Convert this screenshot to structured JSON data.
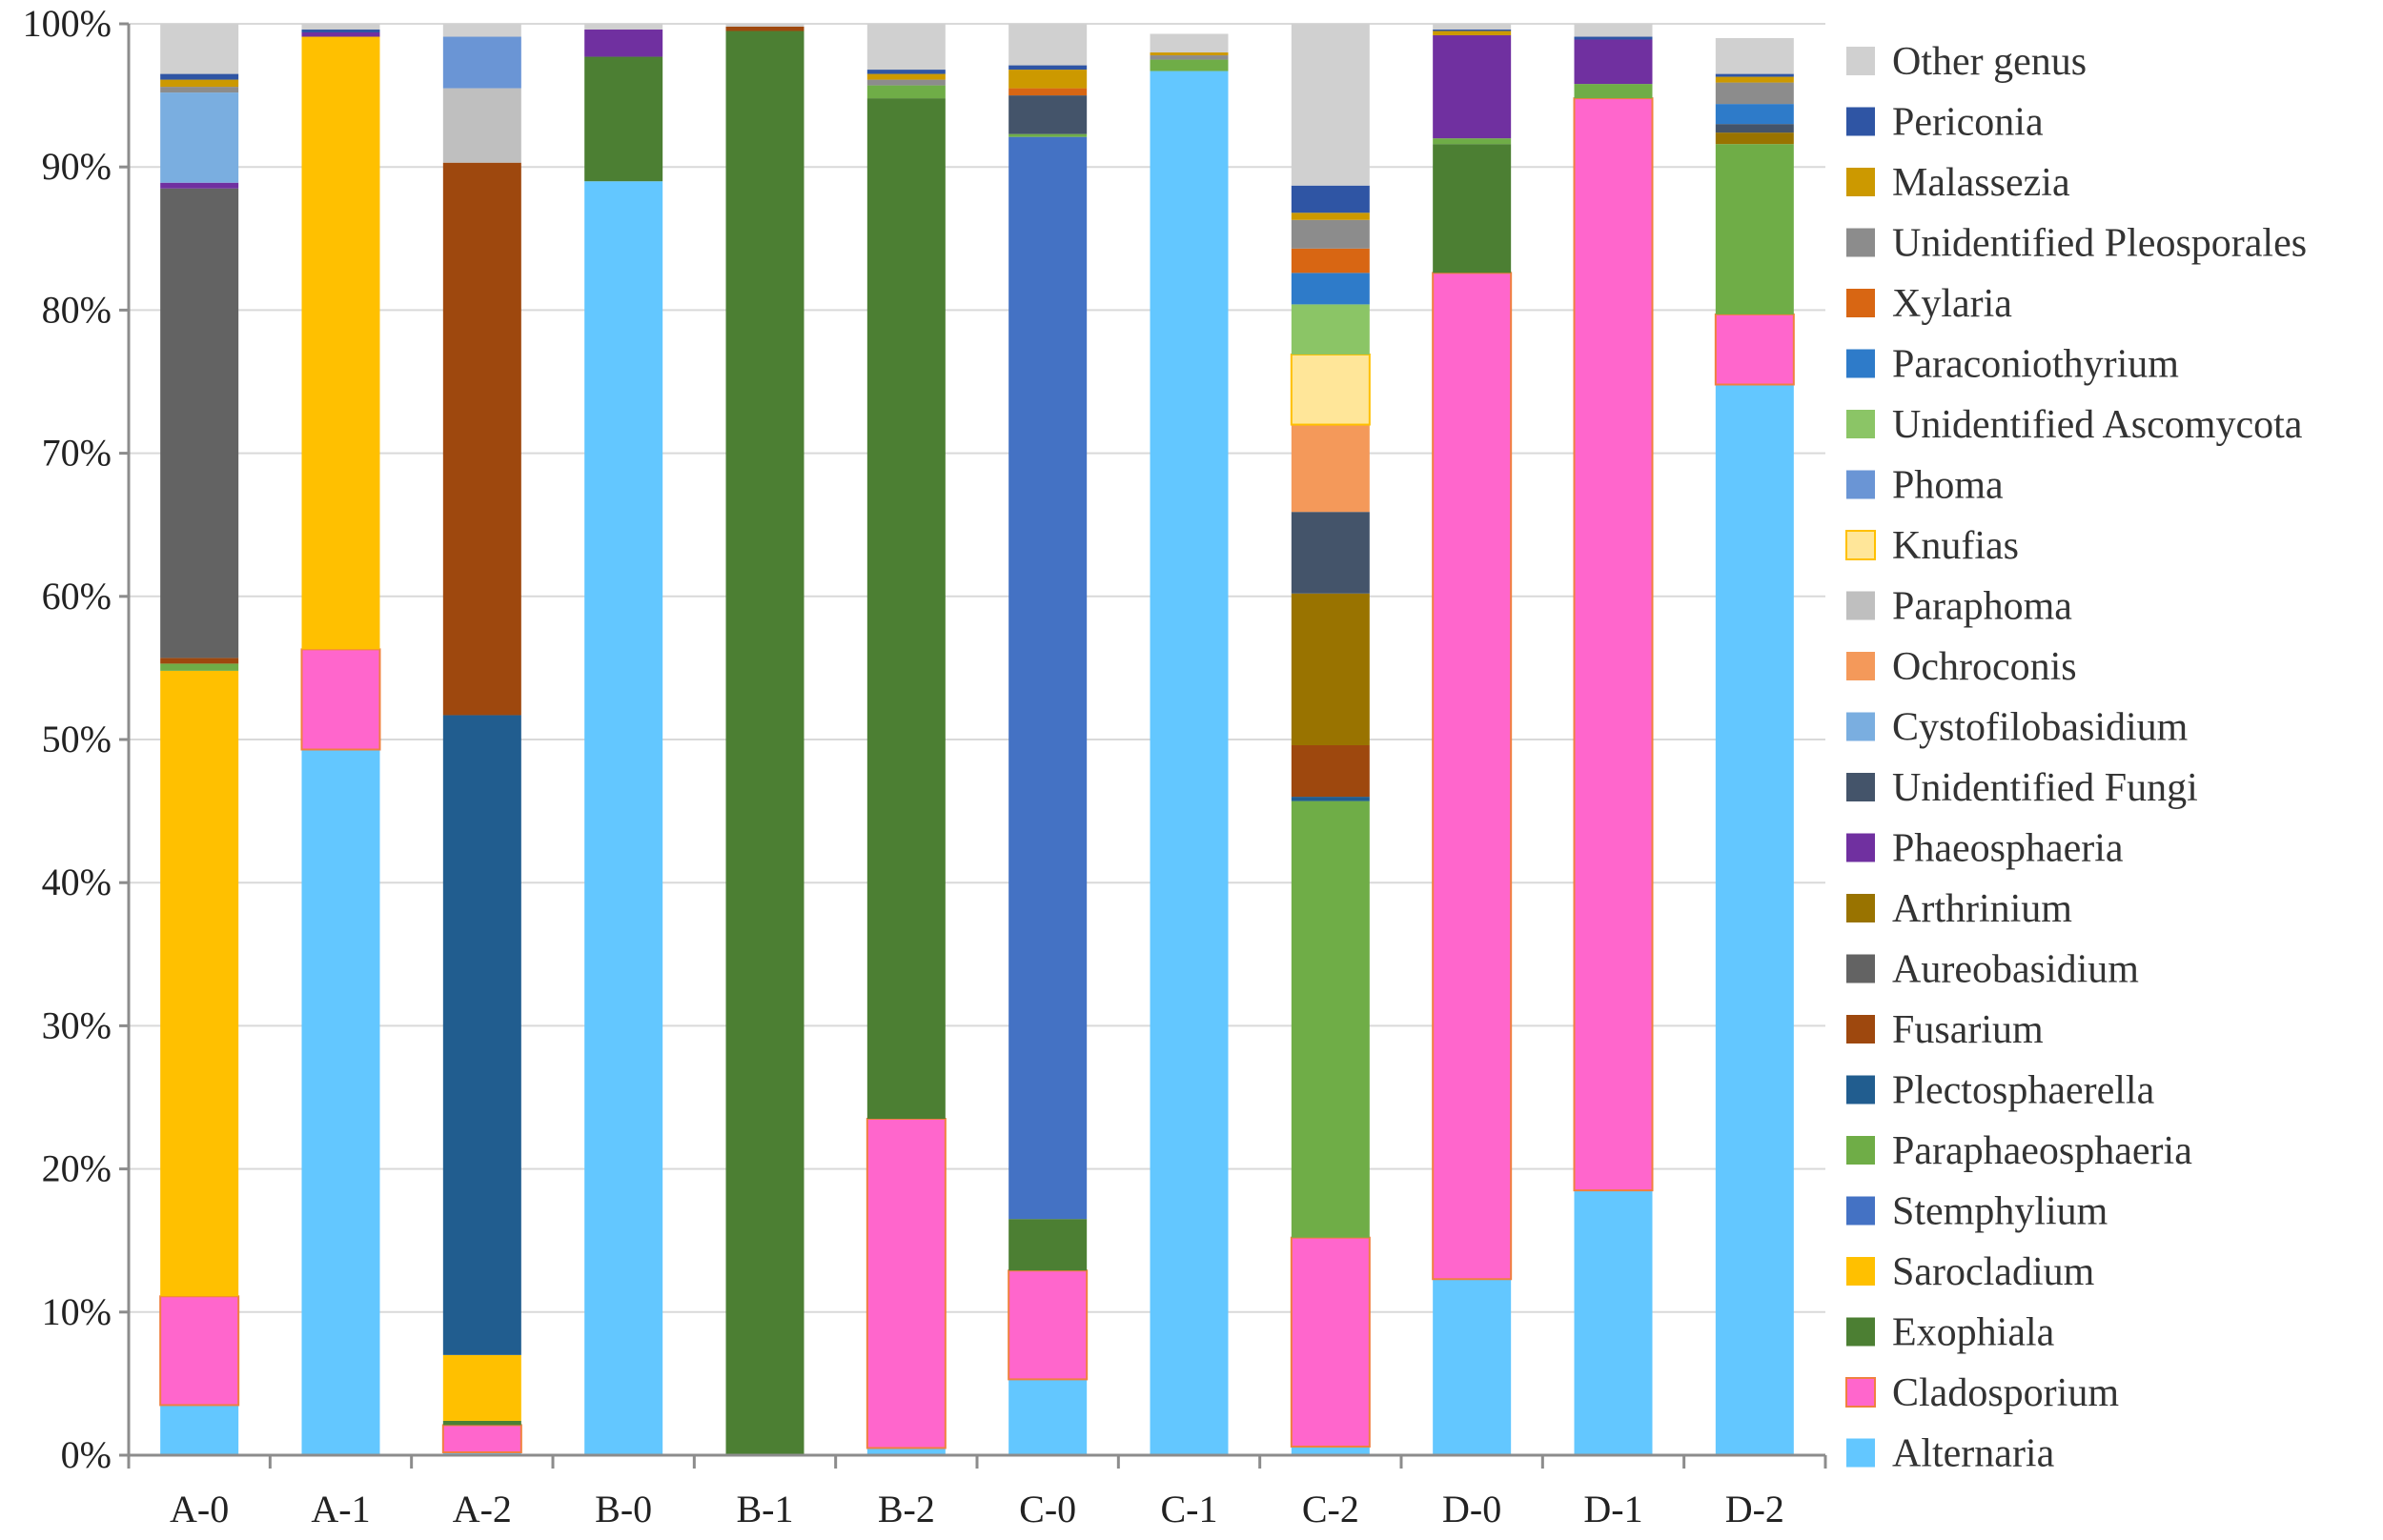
{
  "chart_data": {
    "type": "bar",
    "stacked": true,
    "percent": true,
    "title": "",
    "xlabel": "",
    "ylabel": "",
    "ylim": [
      0,
      100
    ],
    "yticks": [
      "0%",
      "10%",
      "20%",
      "30%",
      "40%",
      "50%",
      "60%",
      "70%",
      "80%",
      "90%",
      "100%"
    ],
    "grid": true,
    "legend_position": "right",
    "categories": [
      "A-0",
      "A-1",
      "A-2",
      "B-0",
      "B-1",
      "B-2",
      "C-0",
      "C-1",
      "C-2",
      "D-0",
      "D-1",
      "D-2"
    ],
    "series": [
      {
        "name": "Alternaria",
        "color": "#63C7FF",
        "values": [
          3.5,
          49.3,
          0.2,
          89.0,
          0,
          0.5,
          5.3,
          96.7,
          0.6,
          12.3,
          18.5,
          74.8
        ]
      },
      {
        "name": "Cladosporium",
        "color": "#FF66CC",
        "values": [
          7.6,
          7.0,
          1.9,
          0,
          0,
          23.0,
          7.6,
          0,
          14.6,
          70.3,
          76.3,
          4.9
        ]
      },
      {
        "name": "Exophiala",
        "color": "#4C7F33",
        "values": [
          0,
          0,
          0.3,
          8.7,
          99.5,
          71.3,
          3.6,
          0,
          0,
          9.0,
          0,
          0
        ]
      },
      {
        "name": "Sarocladium",
        "color": "#FFC000",
        "values": [
          43.7,
          42.8,
          4.6,
          0,
          0,
          0,
          0,
          0,
          0,
          0,
          0,
          0
        ]
      },
      {
        "name": "Stemphylium",
        "color": "#4472C4",
        "values": [
          0,
          0,
          0,
          0,
          0,
          0,
          75.6,
          0,
          0,
          0,
          0,
          0
        ]
      },
      {
        "name": "Paraphaeosphaeria",
        "color": "#6FAD47",
        "values": [
          0.5,
          0,
          0,
          0,
          0,
          0.9,
          0.2,
          0.8,
          30.5,
          0.4,
          1.0,
          11.9
        ]
      },
      {
        "name": "Plectosphaerella",
        "color": "#215D8F",
        "values": [
          0,
          0,
          44.7,
          0,
          0,
          0,
          0,
          0,
          0.3,
          0,
          0,
          0
        ]
      },
      {
        "name": "Fusarium",
        "color": "#9E480E",
        "values": [
          0.4,
          0,
          38.6,
          0,
          0.3,
          0,
          0,
          0,
          3.6,
          0,
          0,
          0
        ]
      },
      {
        "name": "Aureobasidium",
        "color": "#636363",
        "values": [
          32.8,
          0,
          0,
          0,
          0,
          0,
          0,
          0,
          0,
          0,
          0,
          0
        ]
      },
      {
        "name": "Arthrinium",
        "color": "#997300",
        "values": [
          0,
          0,
          0,
          0,
          0,
          0,
          0,
          0,
          10.6,
          0,
          0,
          0.8
        ]
      },
      {
        "name": "Phaeosphaeria",
        "color": "#7030A0",
        "values": [
          0.4,
          0.3,
          0,
          1.9,
          0,
          0,
          0,
          0,
          0,
          7.2,
          3.1,
          0
        ]
      },
      {
        "name": "Unidentified Fungi",
        "color": "#44546A",
        "values": [
          0,
          0,
          0,
          0,
          0,
          0,
          2.7,
          0,
          5.7,
          0,
          0,
          0.6
        ]
      },
      {
        "name": "Cystofilobasidium",
        "color": "#7AAEE0",
        "values": [
          6.3,
          0,
          0,
          0,
          0,
          0,
          0,
          0,
          0,
          0,
          0,
          0
        ]
      },
      {
        "name": "Ochroconis",
        "color": "#F4995A",
        "values": [
          0,
          0,
          0,
          0,
          0,
          0,
          0,
          0,
          6.1,
          0,
          0,
          0
        ]
      },
      {
        "name": "Paraphoma",
        "color": "#BFBFBF",
        "values": [
          0,
          0,
          5.2,
          0,
          0,
          0,
          0,
          0,
          0,
          0,
          0,
          0
        ]
      },
      {
        "name": "Knufias",
        "color": "#FFE699",
        "values": [
          0,
          0,
          0,
          0,
          0,
          0,
          0,
          0,
          4.9,
          0,
          0,
          0
        ]
      },
      {
        "name": "Phoma",
        "color": "#6A95D5",
        "values": [
          0,
          0,
          3.6,
          0,
          0,
          0,
          0,
          0,
          0,
          0,
          0,
          0
        ]
      },
      {
        "name": "Unidentified Ascomycota",
        "color": "#8BC566",
        "values": [
          0,
          0,
          0,
          0,
          0,
          0,
          0,
          0,
          3.5,
          0,
          0,
          0
        ]
      },
      {
        "name": "Paraconiothyrium",
        "color": "#2E7BC9",
        "values": [
          0,
          0,
          0,
          0,
          0,
          0,
          0,
          0,
          2.2,
          0,
          0,
          1.4
        ]
      },
      {
        "name": "Xylaria",
        "color": "#D86613",
        "values": [
          0,
          0,
          0,
          0,
          0,
          0,
          0.5,
          0,
          1.7,
          0,
          0,
          0
        ]
      },
      {
        "name": "Unidentified Pleosporales",
        "color": "#8C8C8C",
        "values": [
          0.4,
          0,
          0,
          0,
          0,
          0.4,
          0,
          0.3,
          2.0,
          0,
          0,
          1.5
        ]
      },
      {
        "name": "Malassezia",
        "color": "#CC9900",
        "values": [
          0.5,
          0,
          0,
          0,
          0,
          0.4,
          1.3,
          0.2,
          0.5,
          0.3,
          0,
          0.4
        ]
      },
      {
        "name": "Periconia",
        "color": "#2F55A4",
        "values": [
          0.4,
          0.2,
          0,
          0,
          0,
          0.3,
          0.3,
          0,
          1.9,
          0.1,
          0.2,
          0.2
        ]
      },
      {
        "name": "Other genus",
        "color": "#D0D0D0",
        "values": [
          3.5,
          0.4,
          0.9,
          0.4,
          0.2,
          3.2,
          2.9,
          1.3,
          11.3,
          0.4,
          0.9,
          2.5
        ]
      }
    ]
  }
}
